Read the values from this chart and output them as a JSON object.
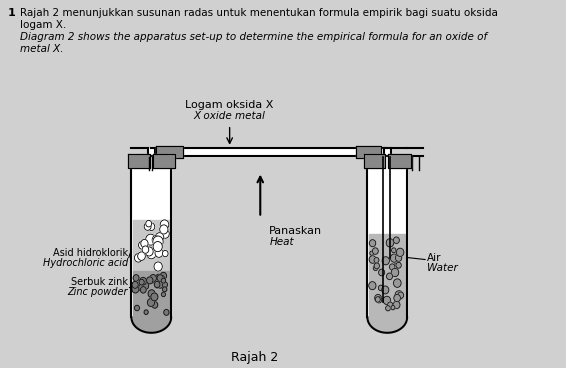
{
  "background_color": "#d0d0d0",
  "title_number": "1",
  "text_line1": "Rajah 2 menunjukkan susunan radas untuk menentukan formula empirik bagi suatu oksida",
  "text_line2": "logam X.",
  "text_line3": "Diagram 2 shows the apparatus set-up to determine the empirical formula for an oxide of",
  "text_line4": "metal X.",
  "label_oxide_bm": "Logam oksida X",
  "label_oxide_en": "X oxide metal",
  "label_heat_bm": "Panaskan",
  "label_heat_en": "Heat",
  "label_acid_bm": "Asid hidroklorik",
  "label_acid_en": "Hydrochloric acid",
  "label_zinc_bm": "Serbuk zink",
  "label_zinc_en": "Zinc powder",
  "label_water_bm": "Air",
  "label_water_en": "Water",
  "caption": "Rajah 2",
  "tube_border": "#000000",
  "pipe_color": "#000000"
}
